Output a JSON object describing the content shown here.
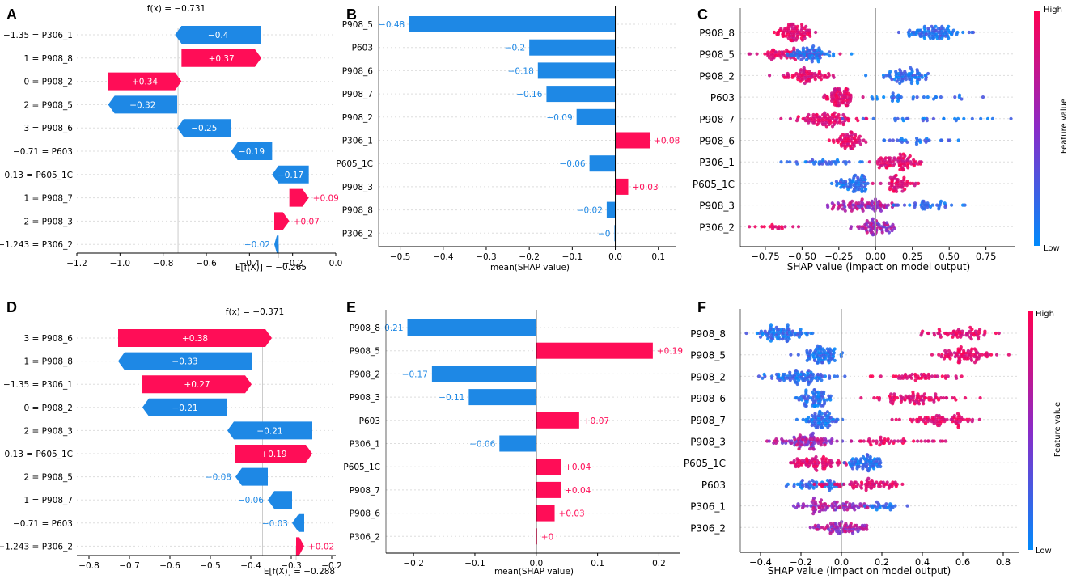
{
  "colors": {
    "positive": "#ff0d57",
    "negative": "#1e88e5",
    "axis": "#000000",
    "grid": "#dddddd",
    "muted": "#888888",
    "zero": "#999999"
  },
  "chart_data": [
    {
      "id": "A",
      "type": "waterfall",
      "panel_label": "A",
      "fx_label": "f(x) = −0.731",
      "efx_label": "E[f(X)] = −0.265",
      "fx": -0.731,
      "efx": -0.265,
      "xlim": [
        -1.2,
        0.0
      ],
      "ticks": [
        -1.2,
        -1.0,
        -0.8,
        -0.6,
        -0.4,
        -0.2,
        0.0
      ],
      "tick_labels": [
        "−1.2",
        "−1.0",
        "−0.8",
        "−0.6",
        "−0.4",
        "−0.2",
        "0.0"
      ],
      "rows": [
        {
          "label": "−1.35 = P306_1",
          "value": -0.4,
          "text": "−0.4"
        },
        {
          "label": "1 = P908_8",
          "value": 0.37,
          "text": "+0.37"
        },
        {
          "label": "0 = P908_2",
          "value": 0.34,
          "text": "+0.34"
        },
        {
          "label": "2 = P908_5",
          "value": -0.32,
          "text": "−0.32"
        },
        {
          "label": "3 = P908_6",
          "value": -0.25,
          "text": "−0.25"
        },
        {
          "label": "−0.71 = P603",
          "value": -0.19,
          "text": "−0.19"
        },
        {
          "label": "0.13 = P605_1C",
          "value": -0.17,
          "text": "−0.17"
        },
        {
          "label": "1 = P908_7",
          "value": 0.09,
          "text": "+0.09"
        },
        {
          "label": "2 = P908_3",
          "value": 0.07,
          "text": "+0.07"
        },
        {
          "label": "−1.243 = P306_2",
          "value": -0.02,
          "text": "−0.02"
        }
      ]
    },
    {
      "id": "B",
      "type": "bar",
      "panel_label": "B",
      "xlabel": "mean(SHAP value)",
      "xlim": [
        -0.55,
        0.14
      ],
      "ticks": [
        -0.5,
        -0.4,
        -0.3,
        -0.2,
        -0.1,
        0.0,
        0.1
      ],
      "tick_labels": [
        "−0.5",
        "−0.4",
        "−0.3",
        "−0.2",
        "−0.1",
        "0.0",
        "0.1"
      ],
      "rows": [
        {
          "label": "P908_5",
          "value": -0.48,
          "text": "−0.48"
        },
        {
          "label": "P603",
          "value": -0.2,
          "text": "−0.2"
        },
        {
          "label": "P908_6",
          "value": -0.18,
          "text": "−0.18"
        },
        {
          "label": "P908_7",
          "value": -0.16,
          "text": "−0.16"
        },
        {
          "label": "P908_2",
          "value": -0.09,
          "text": "−0.09"
        },
        {
          "label": "P306_1",
          "value": 0.08,
          "text": "+0.08"
        },
        {
          "label": "P605_1C",
          "value": -0.06,
          "text": "−0.06"
        },
        {
          "label": "P908_3",
          "value": 0.03,
          "text": "+0.03"
        },
        {
          "label": "P908_8",
          "value": -0.02,
          "text": "−0.02"
        },
        {
          "label": "P306_2",
          "value": -0.002,
          "text": "−0"
        }
      ]
    },
    {
      "id": "C",
      "type": "beeswarm",
      "panel_label": "C",
      "xlabel": "SHAP value (impact on model output)",
      "colorbar": {
        "high": "High",
        "low": "Low",
        "title": "Feature value"
      },
      "xlim": [
        -0.92,
        0.95
      ],
      "ticks": [
        -0.75,
        -0.5,
        -0.25,
        0.0,
        0.25,
        0.5,
        0.75
      ],
      "tick_labels": [
        "−0.75",
        "−0.50",
        "−0.25",
        "0.00",
        "0.25",
        "0.50",
        "0.75"
      ],
      "features": [
        {
          "label": "P908_8",
          "clusters": [
            {
              "c": -0.55,
              "s": 0.07,
              "w": 1.0,
              "col": "high"
            },
            {
              "c": 0.4,
              "s": 0.1,
              "w": 1.0,
              "col": "low"
            }
          ]
        },
        {
          "label": "P908_5",
          "clusters": [
            {
              "c": -0.6,
              "s": 0.12,
              "w": 0.8,
              "col": "high"
            },
            {
              "c": -0.43,
              "s": 0.07,
              "w": 0.8,
              "col": "low"
            }
          ]
        },
        {
          "label": "P908_2",
          "clusters": [
            {
              "c": -0.45,
              "s": 0.08,
              "w": 0.8,
              "col": "high"
            },
            {
              "c": 0.2,
              "s": 0.08,
              "w": 0.8,
              "col": "low"
            }
          ]
        },
        {
          "label": "P603",
          "clusters": [
            {
              "c": -0.25,
              "s": 0.05,
              "w": 0.9,
              "col": "high"
            },
            {
              "c": 0.2,
              "s": 0.25,
              "w": 0.35,
              "col": "low"
            }
          ]
        },
        {
          "label": "P908_7",
          "clusters": [
            {
              "c": -0.33,
              "s": 0.11,
              "w": 1.0,
              "col": "high"
            },
            {
              "c": 0.35,
              "s": 0.28,
              "w": 0.3,
              "col": "low"
            }
          ]
        },
        {
          "label": "P908_6",
          "clusters": [
            {
              "c": -0.2,
              "s": 0.05,
              "w": 0.7,
              "col": "high"
            },
            {
              "c": 0.2,
              "s": 0.15,
              "w": 0.3,
              "col": "low"
            }
          ]
        },
        {
          "label": "P306_1",
          "clusters": [
            {
              "c": -0.33,
              "s": 0.15,
              "w": 0.4,
              "col": "low"
            },
            {
              "c": 0.15,
              "s": 0.09,
              "w": 0.9,
              "col": "high"
            }
          ]
        },
        {
          "label": "P605_1C",
          "clusters": [
            {
              "c": -0.15,
              "s": 0.06,
              "w": 0.8,
              "col": "low"
            },
            {
              "c": 0.15,
              "s": 0.06,
              "w": 0.6,
              "col": "high"
            }
          ]
        },
        {
          "label": "P908_3",
          "clusters": [
            {
              "c": -0.08,
              "s": 0.11,
              "w": 0.9,
              "col": "mix"
            },
            {
              "c": 0.35,
              "s": 0.12,
              "w": 0.4,
              "col": "low"
            }
          ]
        },
        {
          "label": "P306_2",
          "clusters": [
            {
              "c": 0.0,
              "s": 0.07,
              "w": 0.8,
              "col": "mix"
            },
            {
              "c": -0.73,
              "s": 0.1,
              "w": 0.2,
              "col": "high"
            }
          ]
        }
      ]
    },
    {
      "id": "D",
      "type": "waterfall",
      "panel_label": "D",
      "fx_label": "f(x) = −0.371",
      "efx_label": "E[f(X)] = −0.288",
      "fx": -0.371,
      "efx": -0.288,
      "xlim": [
        -0.83,
        -0.19
      ],
      "ticks": [
        -0.8,
        -0.7,
        -0.6,
        -0.5,
        -0.4,
        -0.3,
        -0.2
      ],
      "tick_labels": [
        "−0.8",
        "−0.7",
        "−0.6",
        "−0.5",
        "−0.4",
        "−0.3",
        "−0.2"
      ],
      "rows": [
        {
          "label": "3 = P908_6",
          "value": 0.38,
          "text": "+0.38"
        },
        {
          "label": "1 = P908_8",
          "value": -0.33,
          "text": "−0.33"
        },
        {
          "label": "−1.35 = P306_1",
          "value": 0.27,
          "text": "+0.27"
        },
        {
          "label": "0 = P908_2",
          "value": -0.21,
          "text": "−0.21"
        },
        {
          "label": "2 = P908_3",
          "value": -0.21,
          "text": "−0.21"
        },
        {
          "label": "0.13 = P605_1C",
          "value": 0.19,
          "text": "+0.19"
        },
        {
          "label": "2 = P908_5",
          "value": -0.08,
          "text": "−0.08"
        },
        {
          "label": "1 = P908_7",
          "value": -0.06,
          "text": "−0.06"
        },
        {
          "label": "−0.71 = P603",
          "value": -0.03,
          "text": "−0.03"
        },
        {
          "label": "−1.243 = P306_2",
          "value": 0.02,
          "text": "+0.02"
        }
      ]
    },
    {
      "id": "E",
      "type": "bar",
      "panel_label": "E",
      "xlabel": "mean(SHAP value)",
      "xlim": [
        -0.245,
        0.235
      ],
      "ticks": [
        -0.2,
        -0.1,
        0.0,
        0.1,
        0.2
      ],
      "tick_labels": [
        "−0.2",
        "−0.1",
        "0.0",
        "0.1",
        "0.2"
      ],
      "rows": [
        {
          "label": "P908_8",
          "value": -0.21,
          "text": "−0.21"
        },
        {
          "label": "P908_5",
          "value": 0.19,
          "text": "+0.19"
        },
        {
          "label": "P908_2",
          "value": -0.17,
          "text": "−0.17"
        },
        {
          "label": "P908_3",
          "value": -0.11,
          "text": "−0.11"
        },
        {
          "label": "P603",
          "value": 0.07,
          "text": "+0.07"
        },
        {
          "label": "P306_1",
          "value": -0.06,
          "text": "−0.06"
        },
        {
          "label": "P605_1C",
          "value": 0.04,
          "text": "+0.04"
        },
        {
          "label": "P908_7",
          "value": 0.04,
          "text": "+0.04"
        },
        {
          "label": "P908_6",
          "value": 0.03,
          "text": "+0.03"
        },
        {
          "label": "P306_2",
          "value": 0.001,
          "text": "+0"
        }
      ]
    },
    {
      "id": "F",
      "type": "beeswarm",
      "panel_label": "F",
      "xlabel": "SHAP value (impact on model output)",
      "colorbar": {
        "high": "High",
        "low": "Low",
        "title": "Feature value"
      },
      "xlim": [
        -0.5,
        0.88
      ],
      "ticks": [
        -0.4,
        -0.2,
        0.0,
        0.2,
        0.4,
        0.6,
        0.8
      ],
      "tick_labels": [
        "−0.4",
        "−0.2",
        "0.0",
        "0.2",
        "0.4",
        "0.6",
        "0.8"
      ],
      "features": [
        {
          "label": "P908_8",
          "clusters": [
            {
              "c": -0.3,
              "s": 0.06,
              "w": 1.0,
              "col": "low"
            },
            {
              "c": 0.6,
              "s": 0.1,
              "w": 0.7,
              "col": "high"
            }
          ]
        },
        {
          "label": "P908_5",
          "clusters": [
            {
              "c": -0.1,
              "s": 0.04,
              "w": 0.9,
              "col": "low"
            },
            {
              "c": 0.6,
              "s": 0.07,
              "w": 0.9,
              "col": "high"
            }
          ]
        },
        {
          "label": "P908_2",
          "clusters": [
            {
              "c": -0.2,
              "s": 0.08,
              "w": 1.0,
              "col": "low"
            },
            {
              "c": 0.4,
              "s": 0.1,
              "w": 0.5,
              "col": "high"
            }
          ]
        },
        {
          "label": "P908_6",
          "clusters": [
            {
              "c": -0.12,
              "s": 0.04,
              "w": 0.8,
              "col": "low"
            },
            {
              "c": 0.38,
              "s": 0.09,
              "w": 0.9,
              "col": "high"
            }
          ]
        },
        {
          "label": "P908_7",
          "clusters": [
            {
              "c": -0.1,
              "s": 0.04,
              "w": 0.8,
              "col": "low"
            },
            {
              "c": 0.48,
              "s": 0.09,
              "w": 0.8,
              "col": "high"
            }
          ]
        },
        {
          "label": "P908_3",
          "clusters": [
            {
              "c": -0.18,
              "s": 0.08,
              "w": 1.0,
              "col": "mix"
            },
            {
              "c": 0.25,
              "s": 0.12,
              "w": 0.5,
              "col": "high"
            }
          ]
        },
        {
          "label": "P605_1C",
          "clusters": [
            {
              "c": -0.12,
              "s": 0.07,
              "w": 0.8,
              "col": "high"
            },
            {
              "c": 0.12,
              "s": 0.04,
              "w": 0.8,
              "col": "low"
            }
          ]
        },
        {
          "label": "P603",
          "clusters": [
            {
              "c": -0.12,
              "s": 0.1,
              "w": 0.6,
              "col": "low"
            },
            {
              "c": 0.12,
              "s": 0.1,
              "w": 0.8,
              "col": "high"
            }
          ]
        },
        {
          "label": "P306_1",
          "clusters": [
            {
              "c": -0.05,
              "s": 0.1,
              "w": 1.0,
              "col": "mix"
            },
            {
              "c": 0.2,
              "s": 0.05,
              "w": 0.3,
              "col": "low"
            }
          ]
        },
        {
          "label": "P306_2",
          "clusters": [
            {
              "c": 0.0,
              "s": 0.08,
              "w": 0.9,
              "col": "mix"
            }
          ]
        }
      ]
    }
  ]
}
